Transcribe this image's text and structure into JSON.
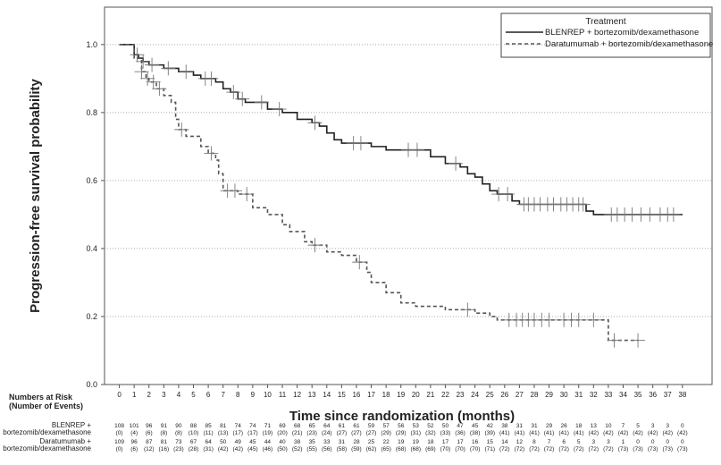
{
  "chart_data": {
    "type": "km",
    "y_label": "Progression-free survival probability",
    "x_label": "Time since randomization (months)",
    "legend_title": "Treatment",
    "xlim": [
      -1,
      40
    ],
    "ylim": [
      0,
      1.11
    ],
    "xticks": [
      0,
      1,
      2,
      3,
      4,
      5,
      6,
      7,
      8,
      9,
      10,
      11,
      12,
      13,
      14,
      15,
      16,
      17,
      18,
      19,
      20,
      21,
      22,
      23,
      24,
      25,
      26,
      27,
      28,
      29,
      30,
      31,
      32,
      33,
      34,
      35,
      36,
      37,
      38
    ],
    "yticks": [
      {
        "value": 0,
        "label": "0.0"
      },
      {
        "value": 0.2,
        "label": "0.2"
      },
      {
        "value": 0.4,
        "label": "0.4"
      },
      {
        "value": 0.6,
        "label": "0.6"
      },
      {
        "value": 0.8,
        "label": "0.8"
      },
      {
        "value": 1,
        "label": "1.0"
      }
    ],
    "grid": true,
    "series": [
      {
        "name": "BLENREP + bortezomib/dexamethasone",
        "color": "#222222",
        "dash": "solid",
        "x": [
          0,
          1,
          1.3,
          1.6,
          2,
          3,
          4,
          5,
          5.5,
          6.5,
          7,
          7.5,
          8,
          8.5,
          10,
          11,
          12,
          13,
          13.5,
          14,
          14.5,
          15,
          17,
          18,
          21,
          22,
          23,
          23.5,
          24,
          24.5,
          25,
          25.5,
          26.5,
          27,
          31.5,
          32,
          38
        ],
        "values": [
          1.0,
          0.97,
          0.96,
          0.95,
          0.94,
          0.93,
          0.92,
          0.91,
          0.9,
          0.89,
          0.87,
          0.86,
          0.84,
          0.83,
          0.81,
          0.8,
          0.78,
          0.77,
          0.76,
          0.74,
          0.72,
          0.71,
          0.7,
          0.69,
          0.67,
          0.65,
          0.64,
          0.62,
          0.61,
          0.59,
          0.57,
          0.56,
          0.54,
          0.53,
          0.51,
          0.5,
          0.5
        ],
        "censor_x": [
          1.2,
          1.6,
          2.2,
          3.3,
          4.5,
          5.8,
          6.2,
          7.7,
          8.3,
          9.6,
          10.8,
          13.2,
          15.8,
          16.3,
          19.5,
          20.1,
          22.7,
          25.6,
          26.2,
          27.3,
          27.6,
          28,
          28.4,
          28.9,
          29.3,
          29.8,
          30.2,
          30.6,
          31,
          31.3,
          33.2,
          33.6,
          34.1,
          34.6,
          35.2,
          35.8,
          36.5,
          37,
          37.4
        ],
        "censor_y": [
          0.97,
          0.95,
          0.94,
          0.93,
          0.92,
          0.9,
          0.9,
          0.86,
          0.84,
          0.83,
          0.81,
          0.77,
          0.71,
          0.71,
          0.69,
          0.69,
          0.65,
          0.56,
          0.56,
          0.53,
          0.53,
          0.53,
          0.53,
          0.53,
          0.53,
          0.53,
          0.53,
          0.53,
          0.53,
          0.53,
          0.5,
          0.5,
          0.5,
          0.5,
          0.5,
          0.5,
          0.5,
          0.5,
          0.5
        ],
        "risk_label": [
          "BLENREP +",
          "bortezomib/dexamethasone"
        ],
        "at_risk": [
          108,
          101,
          96,
          91,
          90,
          88,
          85,
          81,
          74,
          74,
          71,
          69,
          68,
          65,
          64,
          61,
          61,
          59,
          57,
          56,
          53,
          52,
          50,
          47,
          45,
          42,
          38,
          31,
          31,
          29,
          26,
          18,
          13,
          10,
          7,
          5,
          3,
          3,
          0
        ],
        "events": [
          "(0)",
          "(4)",
          "(6)",
          "(8)",
          "(8)",
          "(10)",
          "(11)",
          "(13)",
          "(17)",
          "(17)",
          "(19)",
          "(20)",
          "(21)",
          "(23)",
          "(24)",
          "(27)",
          "(27)",
          "(27)",
          "(29)",
          "(29)",
          "(31)",
          "(32)",
          "(33)",
          "(36)",
          "(38)",
          "(39)",
          "(41)",
          "(41)",
          "(41)",
          "(41)",
          "(41)",
          "(41)",
          "(42)",
          "(42)",
          "(42)",
          "(42)",
          "(42)",
          "(42)",
          "(42)"
        ]
      },
      {
        "name": "Daratumumab + bortezomib/dexamethasone",
        "color": "#555555",
        "dash": "dashed",
        "x": [
          0,
          1,
          1.5,
          1.8,
          2,
          2.5,
          3,
          3.5,
          3.8,
          4,
          4.5,
          5.5,
          6,
          6.5,
          6.7,
          7,
          8,
          9,
          10,
          11,
          11.5,
          12.5,
          13,
          14,
          15,
          16,
          16.7,
          17,
          18,
          19,
          20,
          22,
          24,
          25,
          25.5,
          33,
          35
        ],
        "values": [
          1.0,
          0.96,
          0.92,
          0.9,
          0.89,
          0.87,
          0.85,
          0.83,
          0.78,
          0.75,
          0.73,
          0.7,
          0.68,
          0.66,
          0.62,
          0.57,
          0.56,
          0.52,
          0.5,
          0.47,
          0.45,
          0.42,
          0.41,
          0.39,
          0.38,
          0.36,
          0.33,
          0.3,
          0.27,
          0.24,
          0.23,
          0.22,
          0.21,
          0.2,
          0.19,
          0.13,
          0.13
        ],
        "censor_x": [
          1.5,
          1.9,
          2.3,
          2.7,
          4.2,
          6.2,
          7.3,
          7.8,
          8.6,
          13.2,
          16.2,
          23.5,
          26.3,
          26.8,
          27.2,
          27.6,
          28,
          28.5,
          29,
          30,
          30.5,
          31,
          32,
          33.4,
          35
        ],
        "censor_y": [
          0.92,
          0.9,
          0.89,
          0.87,
          0.75,
          0.68,
          0.57,
          0.57,
          0.56,
          0.41,
          0.36,
          0.22,
          0.19,
          0.19,
          0.19,
          0.19,
          0.19,
          0.19,
          0.19,
          0.19,
          0.19,
          0.19,
          0.19,
          0.13,
          0.13
        ],
        "risk_label": [
          "Daratumumab +",
          "bortezomib/dexamethasone"
        ],
        "at_risk": [
          109,
          96,
          87,
          81,
          73,
          67,
          64,
          50,
          49,
          45,
          44,
          40,
          38,
          35,
          33,
          31,
          28,
          25,
          22,
          19,
          19,
          18,
          17,
          17,
          16,
          15,
          14,
          12,
          8,
          7,
          6,
          5,
          3,
          3,
          1,
          0,
          0,
          0,
          0
        ],
        "events": [
          "(0)",
          "(6)",
          "(12)",
          "(16)",
          "(23)",
          "(28)",
          "(31)",
          "(42)",
          "(42)",
          "(45)",
          "(46)",
          "(50)",
          "(52)",
          "(55)",
          "(56)",
          "(58)",
          "(59)",
          "(62)",
          "(65)",
          "(68)",
          "(68)",
          "(69)",
          "(70)",
          "(70)",
          "(70)",
          "(71)",
          "(72)",
          "(72)",
          "(72)",
          "(72)",
          "(72)",
          "(72)",
          "(72)",
          "(72)",
          "(73)",
          "(73)",
          "(73)",
          "(73)",
          "(73)"
        ]
      }
    ],
    "risk_title": [
      "Numbers at Risk",
      "(Number of Events)"
    ]
  }
}
